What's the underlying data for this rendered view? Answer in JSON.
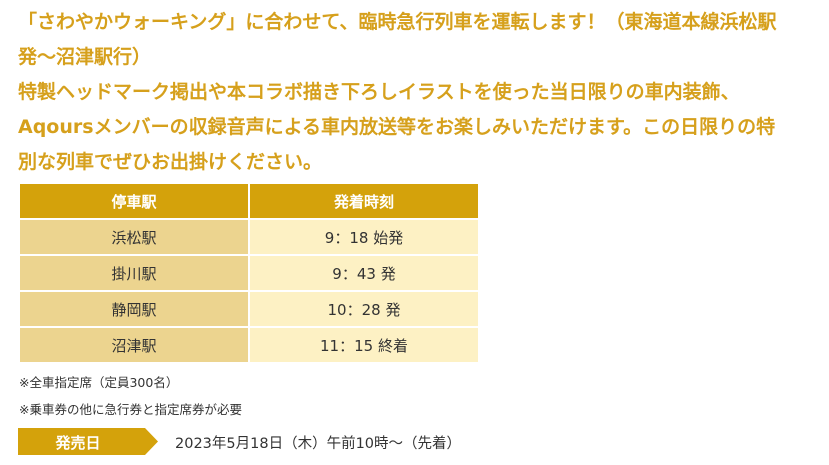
{
  "intro": {
    "lines": [
      "「さわやかウォーキング」に合わせて、臨時急行列車を運転します！（東海道本線浜松駅",
      "発〜沼津駅行）",
      "特製ヘッドマーク掲出や本コラボ描き下ろしイラストを使った当日限りの車内装飾、",
      "Aqoursメンバーの収録音声による車内放送等をお楽しみいただけます。この日限りの特",
      "別な列車でぜひお出掛けください。"
    ]
  },
  "timetable": {
    "headers": [
      "停車駅",
      "発着時刻"
    ],
    "rows": [
      {
        "station": "浜松駅",
        "time": "9：18 始発"
      },
      {
        "station": "掛川駅",
        "time": "9：43 発"
      },
      {
        "station": "静岡駅",
        "time": "10：28 発"
      },
      {
        "station": "沼津駅",
        "time": "11：15 終着"
      }
    ]
  },
  "notes": [
    "※全車指定席（定員300名）",
    "※乗車券の他に急行券と指定席券が必要"
  ],
  "sale": {
    "label": "発売日",
    "date": "2023年5月18日（木）午前10時〜（先着）"
  },
  "colors": {
    "accent": "#d4a20b",
    "station_cell": "#ecd48f",
    "time_cell": "#fdf1c4",
    "intro_text": "#d6a01c"
  }
}
